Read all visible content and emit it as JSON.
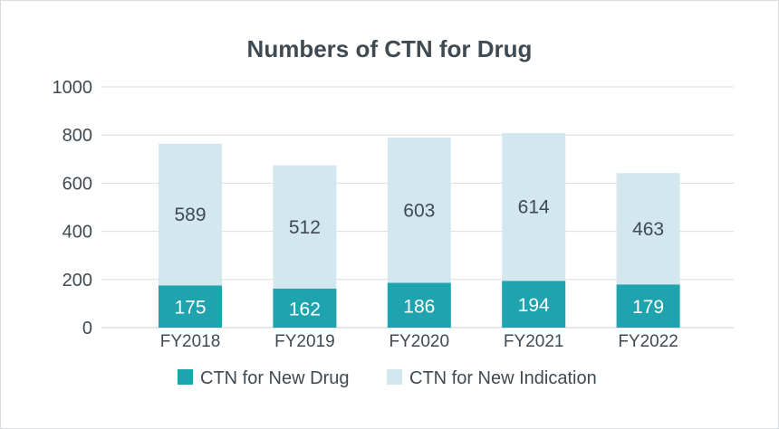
{
  "chart_data": {
    "type": "bar",
    "stacked": true,
    "title": "Numbers of CTN for Drug",
    "categories": [
      "FY2018",
      "FY2019",
      "FY2020",
      "FY2021",
      "FY2022"
    ],
    "series": [
      {
        "name": "CTN for New Drug",
        "values": [
          175,
          162,
          186,
          194,
          179
        ],
        "color": "#1fa3ae"
      },
      {
        "name": "CTN for New Indication",
        "values": [
          589,
          512,
          603,
          614,
          463
        ],
        "color": "#d2e7ee"
      }
    ],
    "yticks": [
      "0",
      "200",
      "400",
      "600",
      "800",
      "1000"
    ],
    "ylim": [
      0,
      1000
    ],
    "grid": true,
    "legend": "bottom"
  }
}
